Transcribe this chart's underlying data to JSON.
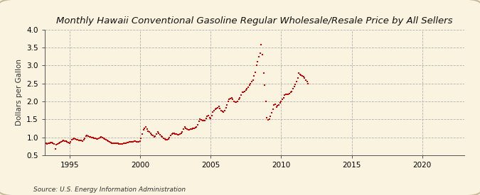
{
  "title": "Monthly Hawaii Conventional Gasoline Regular Wholesale/Resale Price by All Sellers",
  "ylabel": "Dollars per Gallon",
  "source": "Source: U.S. Energy Information Administration",
  "bg_color": "#faf3e0",
  "plot_bg_color": "#faf3e0",
  "line_color": "#cc0000",
  "ylim": [
    0.5,
    4.0
  ],
  "xlim_start": 1993.25,
  "xlim_end": 2023.0,
  "xticks": [
    1995,
    2000,
    2005,
    2010,
    2015,
    2020
  ],
  "yticks": [
    0.5,
    1.0,
    1.5,
    2.0,
    2.5,
    3.0,
    3.5,
    4.0
  ],
  "data": [
    [
      1993.17,
      0.82
    ],
    [
      1993.25,
      0.82
    ],
    [
      1993.33,
      0.83
    ],
    [
      1993.42,
      0.82
    ],
    [
      1993.5,
      0.83
    ],
    [
      1993.58,
      0.83
    ],
    [
      1993.67,
      0.85
    ],
    [
      1993.75,
      0.86
    ],
    [
      1993.83,
      0.84
    ],
    [
      1993.92,
      0.82
    ],
    [
      1994.0,
      0.67
    ],
    [
      1994.08,
      0.8
    ],
    [
      1994.17,
      0.82
    ],
    [
      1994.25,
      0.84
    ],
    [
      1994.33,
      0.86
    ],
    [
      1994.42,
      0.88
    ],
    [
      1994.5,
      0.9
    ],
    [
      1994.58,
      0.91
    ],
    [
      1994.67,
      0.9
    ],
    [
      1994.75,
      0.89
    ],
    [
      1994.83,
      0.87
    ],
    [
      1994.92,
      0.86
    ],
    [
      1995.0,
      0.84
    ],
    [
      1995.08,
      0.88
    ],
    [
      1995.17,
      0.93
    ],
    [
      1995.25,
      0.95
    ],
    [
      1995.33,
      0.97
    ],
    [
      1995.42,
      0.96
    ],
    [
      1995.5,
      0.94
    ],
    [
      1995.58,
      0.93
    ],
    [
      1995.67,
      0.92
    ],
    [
      1995.75,
      0.91
    ],
    [
      1995.83,
      0.91
    ],
    [
      1995.92,
      0.9
    ],
    [
      1996.0,
      0.93
    ],
    [
      1996.08,
      0.98
    ],
    [
      1996.17,
      1.03
    ],
    [
      1996.25,
      1.05
    ],
    [
      1996.33,
      1.04
    ],
    [
      1996.42,
      1.02
    ],
    [
      1996.5,
      1.01
    ],
    [
      1996.58,
      1.0
    ],
    [
      1996.67,
      0.99
    ],
    [
      1996.75,
      0.98
    ],
    [
      1996.83,
      0.97
    ],
    [
      1996.92,
      0.95
    ],
    [
      1997.0,
      0.96
    ],
    [
      1997.08,
      0.98
    ],
    [
      1997.17,
      1.0
    ],
    [
      1997.25,
      1.01
    ],
    [
      1997.33,
      1.0
    ],
    [
      1997.42,
      0.98
    ],
    [
      1997.5,
      0.96
    ],
    [
      1997.58,
      0.94
    ],
    [
      1997.67,
      0.92
    ],
    [
      1997.75,
      0.9
    ],
    [
      1997.83,
      0.88
    ],
    [
      1997.92,
      0.86
    ],
    [
      1998.0,
      0.84
    ],
    [
      1998.08,
      0.83
    ],
    [
      1998.17,
      0.83
    ],
    [
      1998.25,
      0.84
    ],
    [
      1998.33,
      0.83
    ],
    [
      1998.42,
      0.83
    ],
    [
      1998.5,
      0.82
    ],
    [
      1998.58,
      0.82
    ],
    [
      1998.67,
      0.82
    ],
    [
      1998.75,
      0.82
    ],
    [
      1998.83,
      0.83
    ],
    [
      1998.92,
      0.83
    ],
    [
      1999.0,
      0.84
    ],
    [
      1999.08,
      0.85
    ],
    [
      1999.17,
      0.86
    ],
    [
      1999.25,
      0.87
    ],
    [
      1999.33,
      0.87
    ],
    [
      1999.42,
      0.88
    ],
    [
      1999.5,
      0.88
    ],
    [
      1999.58,
      0.89
    ],
    [
      1999.67,
      0.89
    ],
    [
      1999.75,
      0.88
    ],
    [
      1999.83,
      0.88
    ],
    [
      1999.92,
      0.87
    ],
    [
      2000.0,
      0.9
    ],
    [
      2000.08,
      0.98
    ],
    [
      2000.17,
      1.1
    ],
    [
      2000.25,
      1.2
    ],
    [
      2000.33,
      1.25
    ],
    [
      2000.42,
      1.28
    ],
    [
      2000.5,
      1.22
    ],
    [
      2000.58,
      1.18
    ],
    [
      2000.67,
      1.15
    ],
    [
      2000.75,
      1.12
    ],
    [
      2000.83,
      1.08
    ],
    [
      2000.92,
      1.05
    ],
    [
      2001.0,
      1.02
    ],
    [
      2001.08,
      1.03
    ],
    [
      2001.17,
      1.1
    ],
    [
      2001.25,
      1.16
    ],
    [
      2001.33,
      1.12
    ],
    [
      2001.42,
      1.07
    ],
    [
      2001.5,
      1.03
    ],
    [
      2001.58,
      1.01
    ],
    [
      2001.67,
      0.98
    ],
    [
      2001.75,
      0.96
    ],
    [
      2001.83,
      0.94
    ],
    [
      2001.92,
      0.93
    ],
    [
      2002.0,
      0.95
    ],
    [
      2002.08,
      1.0
    ],
    [
      2002.17,
      1.05
    ],
    [
      2002.25,
      1.1
    ],
    [
      2002.33,
      1.12
    ],
    [
      2002.42,
      1.12
    ],
    [
      2002.5,
      1.1
    ],
    [
      2002.58,
      1.09
    ],
    [
      2002.67,
      1.08
    ],
    [
      2002.75,
      1.08
    ],
    [
      2002.83,
      1.1
    ],
    [
      2002.92,
      1.12
    ],
    [
      2003.0,
      1.15
    ],
    [
      2003.08,
      1.22
    ],
    [
      2003.17,
      1.28
    ],
    [
      2003.25,
      1.25
    ],
    [
      2003.33,
      1.22
    ],
    [
      2003.42,
      1.2
    ],
    [
      2003.5,
      1.2
    ],
    [
      2003.58,
      1.22
    ],
    [
      2003.67,
      1.23
    ],
    [
      2003.75,
      1.24
    ],
    [
      2003.83,
      1.25
    ],
    [
      2003.92,
      1.26
    ],
    [
      2004.0,
      1.28
    ],
    [
      2004.08,
      1.35
    ],
    [
      2004.17,
      1.45
    ],
    [
      2004.25,
      1.5
    ],
    [
      2004.33,
      1.48
    ],
    [
      2004.42,
      1.47
    ],
    [
      2004.5,
      1.46
    ],
    [
      2004.58,
      1.47
    ],
    [
      2004.67,
      1.52
    ],
    [
      2004.75,
      1.58
    ],
    [
      2004.83,
      1.6
    ],
    [
      2004.92,
      1.55
    ],
    [
      2005.0,
      1.52
    ],
    [
      2005.08,
      1.6
    ],
    [
      2005.17,
      1.7
    ],
    [
      2005.25,
      1.75
    ],
    [
      2005.33,
      1.78
    ],
    [
      2005.42,
      1.8
    ],
    [
      2005.5,
      1.83
    ],
    [
      2005.58,
      1.86
    ],
    [
      2005.67,
      1.8
    ],
    [
      2005.75,
      1.75
    ],
    [
      2005.83,
      1.72
    ],
    [
      2005.92,
      1.7
    ],
    [
      2006.0,
      1.75
    ],
    [
      2006.08,
      1.82
    ],
    [
      2006.17,
      1.9
    ],
    [
      2006.25,
      2.0
    ],
    [
      2006.33,
      2.05
    ],
    [
      2006.42,
      2.08
    ],
    [
      2006.5,
      2.1
    ],
    [
      2006.58,
      2.05
    ],
    [
      2006.67,
      2.0
    ],
    [
      2006.75,
      1.98
    ],
    [
      2006.83,
      1.98
    ],
    [
      2006.92,
      2.0
    ],
    [
      2007.0,
      2.05
    ],
    [
      2007.08,
      2.1
    ],
    [
      2007.17,
      2.18
    ],
    [
      2007.25,
      2.25
    ],
    [
      2007.33,
      2.25
    ],
    [
      2007.42,
      2.28
    ],
    [
      2007.5,
      2.32
    ],
    [
      2007.58,
      2.35
    ],
    [
      2007.67,
      2.4
    ],
    [
      2007.75,
      2.45
    ],
    [
      2007.83,
      2.5
    ],
    [
      2007.92,
      2.55
    ],
    [
      2008.0,
      2.6
    ],
    [
      2008.08,
      2.7
    ],
    [
      2008.17,
      2.8
    ],
    [
      2008.25,
      3.0
    ],
    [
      2008.33,
      3.1
    ],
    [
      2008.42,
      3.25
    ],
    [
      2008.5,
      3.35
    ],
    [
      2008.58,
      3.57
    ],
    [
      2008.67,
      3.3
    ],
    [
      2008.75,
      2.78
    ],
    [
      2008.83,
      2.45
    ],
    [
      2008.92,
      2.0
    ],
    [
      2009.0,
      1.55
    ],
    [
      2009.08,
      1.48
    ],
    [
      2009.17,
      1.5
    ],
    [
      2009.25,
      1.58
    ],
    [
      2009.33,
      1.68
    ],
    [
      2009.42,
      1.78
    ],
    [
      2009.5,
      1.9
    ],
    [
      2009.58,
      1.92
    ],
    [
      2009.67,
      1.85
    ],
    [
      2009.75,
      1.88
    ],
    [
      2009.83,
      1.9
    ],
    [
      2009.92,
      1.95
    ],
    [
      2010.0,
      2.0
    ],
    [
      2010.08,
      2.05
    ],
    [
      2010.17,
      2.1
    ],
    [
      2010.25,
      2.18
    ],
    [
      2010.33,
      2.2
    ],
    [
      2010.42,
      2.2
    ],
    [
      2010.5,
      2.2
    ],
    [
      2010.58,
      2.22
    ],
    [
      2010.67,
      2.25
    ],
    [
      2010.75,
      2.28
    ],
    [
      2010.83,
      2.35
    ],
    [
      2010.92,
      2.42
    ],
    [
      2011.0,
      2.48
    ],
    [
      2011.08,
      2.55
    ],
    [
      2011.17,
      2.65
    ],
    [
      2011.25,
      2.78
    ],
    [
      2011.33,
      2.75
    ],
    [
      2011.42,
      2.72
    ],
    [
      2011.5,
      2.7
    ],
    [
      2011.58,
      2.68
    ],
    [
      2011.67,
      2.65
    ],
    [
      2011.75,
      2.6
    ],
    [
      2011.83,
      2.55
    ],
    [
      2011.92,
      2.5
    ]
  ]
}
